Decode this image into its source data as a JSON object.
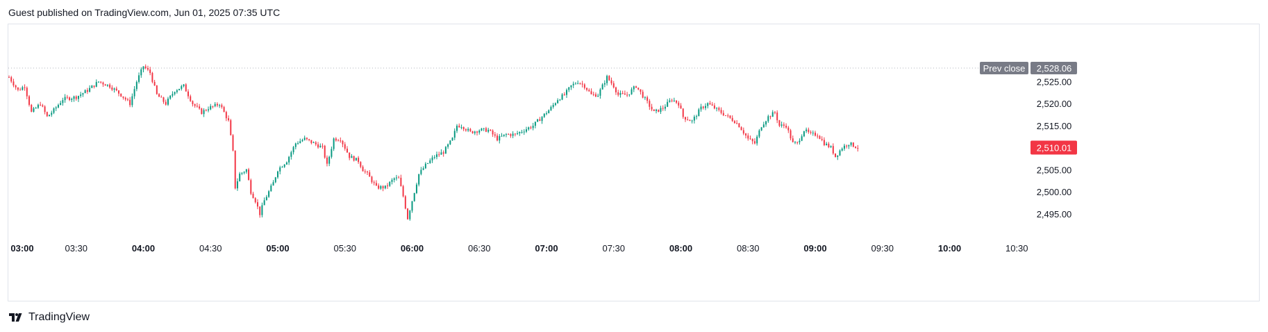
{
  "header": {
    "published": "Guest published on TradingView.com, Jun 01, 2025 07:35 UTC"
  },
  "footer": {
    "brand": "TradingView"
  },
  "icons": {
    "logo": "tradingview-logo-icon"
  },
  "colors": {
    "up": "#089981",
    "down": "#f23645",
    "prev_close_bg": "#787b86",
    "grid": "#e0e3eb",
    "axis_text": "#131722"
  },
  "chart_data": {
    "type": "candlestick",
    "title": "",
    "xlabel": "",
    "ylabel": "",
    "ylim": [
      2491.5,
      2535
    ],
    "y_ticks": [
      "2,495.00",
      "2,500.00",
      "2,505.00",
      "2,510.00",
      "2,515.00",
      "2,520.00",
      "2,525.00"
    ],
    "y_tick_values": [
      2495,
      2500,
      2505,
      2510,
      2515,
      2520,
      2525
    ],
    "x_ticks": [
      {
        "label": "03:00",
        "bold": true,
        "t": 0
      },
      {
        "label": "03:30",
        "bold": false,
        "t": 30
      },
      {
        "label": "04:00",
        "bold": true,
        "t": 60
      },
      {
        "label": "04:30",
        "bold": false,
        "t": 90
      },
      {
        "label": "05:00",
        "bold": true,
        "t": 120
      },
      {
        "label": "05:30",
        "bold": false,
        "t": 150
      },
      {
        "label": "06:00",
        "bold": true,
        "t": 180
      },
      {
        "label": "06:30",
        "bold": false,
        "t": 210
      },
      {
        "label": "07:00",
        "bold": true,
        "t": 240
      },
      {
        "label": "07:30",
        "bold": false,
        "t": 270
      },
      {
        "label": "08:00",
        "bold": true,
        "t": 300
      },
      {
        "label": "08:30",
        "bold": false,
        "t": 330
      },
      {
        "label": "09:00",
        "bold": true,
        "t": 360
      },
      {
        "label": "09:30",
        "bold": false,
        "t": 390
      },
      {
        "label": "10:00",
        "bold": true,
        "t": 420
      },
      {
        "label": "10:30",
        "bold": false,
        "t": 450
      }
    ],
    "prev_close": {
      "label": "Prev close",
      "value": 2528.06,
      "value_text": "2,528.06"
    },
    "last_price": {
      "value": 2510.01,
      "value_text": "2,510.01"
    },
    "anchors": [
      [
        0,
        2526
      ],
      [
        4,
        2523
      ],
      [
        7,
        2524
      ],
      [
        10,
        2518
      ],
      [
        14,
        2520
      ],
      [
        17,
        2517
      ],
      [
        20,
        2518.5
      ],
      [
        24,
        2521
      ],
      [
        30,
        2521.5
      ],
      [
        35,
        2523
      ],
      [
        40,
        2525
      ],
      [
        45,
        2524
      ],
      [
        50,
        2522
      ],
      [
        54,
        2520
      ],
      [
        57,
        2525
      ],
      [
        60,
        2528.5
      ],
      [
        63,
        2527
      ],
      [
        66,
        2522
      ],
      [
        70,
        2520
      ],
      [
        74,
        2523
      ],
      [
        78,
        2524
      ],
      [
        82,
        2520
      ],
      [
        86,
        2518
      ],
      [
        89,
        2519
      ],
      [
        92,
        2519.5
      ],
      [
        94,
        2520
      ],
      [
        96,
        2518
      ],
      [
        98,
        2516
      ],
      [
        100,
        2509
      ],
      [
        101,
        2501
      ],
      [
        103,
        2504
      ],
      [
        106,
        2505
      ],
      [
        108,
        2500
      ],
      [
        110,
        2498
      ],
      [
        112,
        2495
      ],
      [
        114,
        2498
      ],
      [
        116,
        2500
      ],
      [
        118,
        2502
      ],
      [
        120,
        2505
      ],
      [
        124,
        2507
      ],
      [
        128,
        2511
      ],
      [
        132,
        2512
      ],
      [
        136,
        2511
      ],
      [
        140,
        2510
      ],
      [
        142,
        2506
      ],
      [
        145,
        2512
      ],
      [
        148,
        2512
      ],
      [
        152,
        2508
      ],
      [
        156,
        2507
      ],
      [
        158,
        2505
      ],
      [
        160,
        2504
      ],
      [
        164,
        2501
      ],
      [
        168,
        2501
      ],
      [
        172,
        2503
      ],
      [
        174,
        2503
      ],
      [
        176,
        2499
      ],
      [
        178,
        2494
      ],
      [
        180,
        2498
      ],
      [
        183,
        2504
      ],
      [
        186,
        2506
      ],
      [
        190,
        2508
      ],
      [
        194,
        2509
      ],
      [
        198,
        2512
      ],
      [
        200,
        2515
      ],
      [
        202,
        2515
      ],
      [
        206,
        2513.5
      ],
      [
        210,
        2514
      ],
      [
        214,
        2514
      ],
      [
        218,
        2512
      ],
      [
        222,
        2513
      ],
      [
        226,
        2513
      ],
      [
        230,
        2514
      ],
      [
        234,
        2515
      ],
      [
        238,
        2517
      ],
      [
        242,
        2519
      ],
      [
        245,
        2521
      ],
      [
        248,
        2522
      ],
      [
        251,
        2524
      ],
      [
        254,
        2525
      ],
      [
        257,
        2524
      ],
      [
        260,
        2522
      ],
      [
        263,
        2522
      ],
      [
        265,
        2524
      ],
      [
        267,
        2526
      ],
      [
        270,
        2524
      ],
      [
        272,
        2522
      ],
      [
        276,
        2522
      ],
      [
        280,
        2524
      ],
      [
        284,
        2521
      ],
      [
        288,
        2518
      ],
      [
        292,
        2519
      ],
      [
        296,
        2521
      ],
      [
        299,
        2520
      ],
      [
        301,
        2517
      ],
      [
        305,
        2516
      ],
      [
        309,
        2519
      ],
      [
        312,
        2520
      ],
      [
        315,
        2519
      ],
      [
        318,
        2518
      ],
      [
        321,
        2517
      ],
      [
        324,
        2516
      ],
      [
        326,
        2515
      ],
      [
        330,
        2512
      ],
      [
        333,
        2511
      ],
      [
        336,
        2515
      ],
      [
        339,
        2517
      ],
      [
        342,
        2518
      ],
      [
        344,
        2515
      ],
      [
        347,
        2515
      ],
      [
        350,
        2511
      ],
      [
        352,
        2511
      ],
      [
        355,
        2514
      ],
      [
        358,
        2513
      ],
      [
        361,
        2513
      ],
      [
        364,
        2511
      ],
      [
        367,
        2510
      ],
      [
        369,
        2508
      ],
      [
        372,
        2510
      ],
      [
        375,
        2511
      ],
      [
        377,
        2510.5
      ],
      [
        379,
        2510
      ]
    ]
  }
}
